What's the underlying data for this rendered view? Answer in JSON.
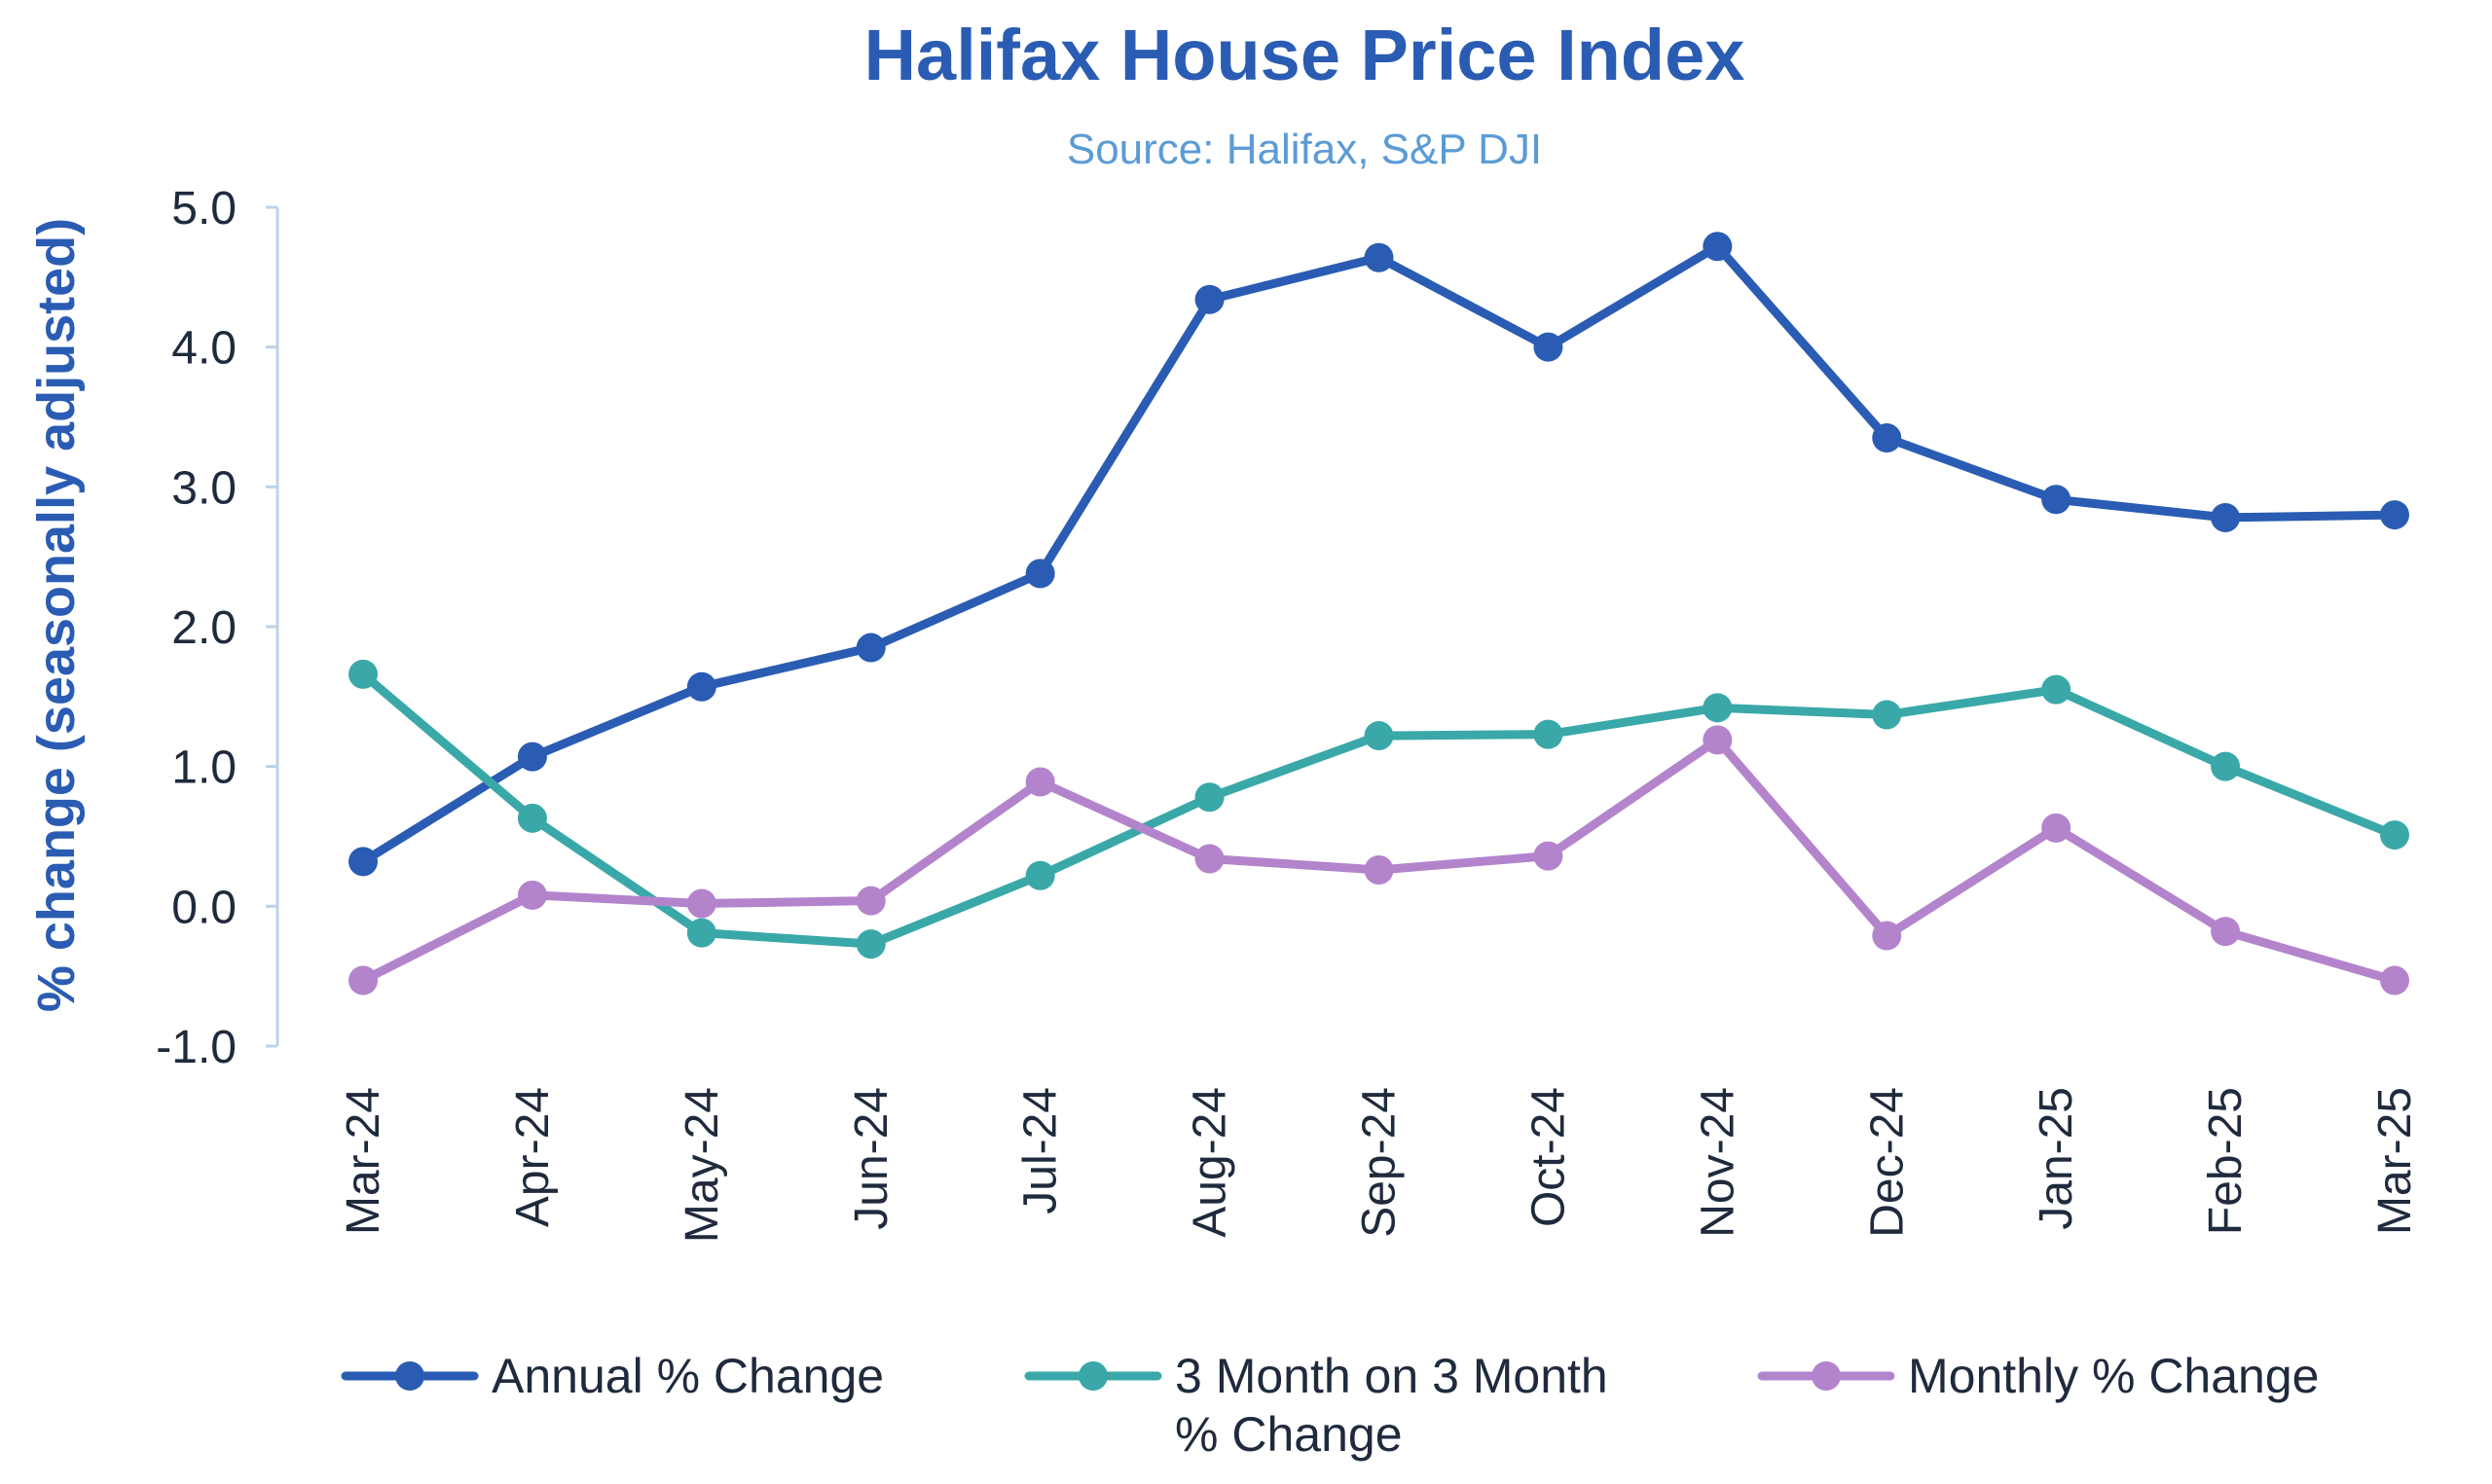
{
  "chart_data": {
    "type": "line",
    "title": "Halifax House Price Index",
    "subtitle": "Source: Halifax, S&P DJI",
    "ylabel": "% change (seasonally adjusted)",
    "xlabel": "",
    "categories": [
      "Mar-24",
      "Apr-24",
      "May-24",
      "Jun-24",
      "Jul-24",
      "Aug-24",
      "Sep-24",
      "Oct-24",
      "Nov-24",
      "Dec-24",
      "Jan-25",
      "Feb-25",
      "Mar-25"
    ],
    "ylim": [
      -1.0,
      5.0
    ],
    "yticks": [
      5.0,
      4.0,
      3.0,
      2.0,
      1.0,
      0.0,
      -1.0
    ],
    "ytick_labels": [
      "5.0",
      "4.0",
      "3.0",
      "2.0",
      "1.0",
      "0.0",
      "-1.0"
    ],
    "grid": false,
    "legend_position": "bottom",
    "series": [
      {
        "name": "Annual % Change",
        "color": "#2a5cb3",
        "values": [
          0.32,
          1.07,
          1.57,
          1.85,
          2.38,
          4.34,
          4.64,
          4.0,
          4.72,
          3.35,
          2.91,
          2.78,
          2.8
        ]
      },
      {
        "name": "3 Month on 3 Month % Change",
        "name_lines": [
          "3 Month on 3 Month",
          "% Change"
        ],
        "color": "#3aa8a8",
        "values": [
          1.66,
          0.63,
          -0.19,
          -0.27,
          0.22,
          0.78,
          1.22,
          1.23,
          1.42,
          1.37,
          1.55,
          1.0,
          0.51
        ]
      },
      {
        "name": "Monthly % Change",
        "color": "#b384cc",
        "values": [
          -0.53,
          0.08,
          0.02,
          0.04,
          0.89,
          0.34,
          0.26,
          0.36,
          1.19,
          -0.21,
          0.56,
          -0.18,
          -0.53
        ]
      }
    ]
  },
  "colors": {
    "title": "#2a5cb3",
    "subtitle": "#5b9bd5",
    "axis_text": "#1f2a3d",
    "axis_line": "#bcd3ea"
  }
}
